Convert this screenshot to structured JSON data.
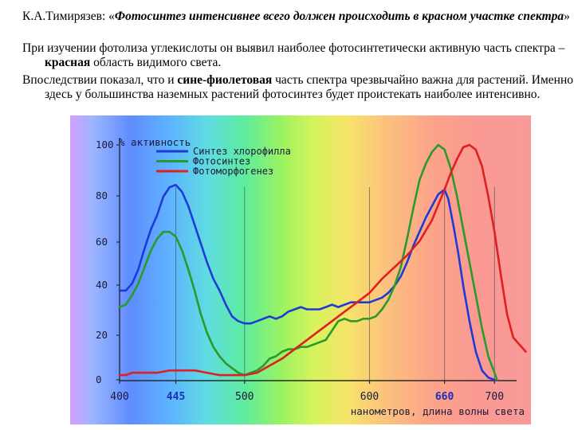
{
  "text": {
    "p1_a": "К.А.Тимирязев: «",
    "p1_em": "Фотосинтез интенсивнее всего должен происходить в красном участке спектра",
    "p1_b": "»",
    "p2_a": "При изучении фотолиза углекислоты он выявил наиболее фотосинтетически активную часть спектра – ",
    "p2_bold": "красная",
    "p2_b": " область видимого света.",
    "p3_a": "Впоследствии показал, что и ",
    "p3_bold": "сине-фиолетовая",
    "p3_b": " часть спектра чрезвычайно важна для растений. Именно здесь у большинства наземных растений фотосинтез будет проистекать наиболее интенсивно."
  },
  "colors": {
    "blue": "#1f3bd6",
    "green": "#2a9a2a",
    "red": "#e02020",
    "axis": "#2a2a2a",
    "tick_label": "#1a1a3a",
    "accent_tick": "#1c2fb5"
  },
  "chart_data": {
    "type": "line",
    "ylabel": "% активность",
    "xlabel": "нанометров, длина волны света",
    "xlim": [
      400,
      740
    ],
    "ylim": [
      0,
      100
    ],
    "x_ticks": [
      {
        "value": 400,
        "label": "400",
        "bold": false
      },
      {
        "value": 445,
        "label": "445",
        "bold": true
      },
      {
        "value": 500,
        "label": "500",
        "bold": false
      },
      {
        "value": 600,
        "label": "600",
        "bold": false
      },
      {
        "value": 660,
        "label": "660",
        "bold": true
      },
      {
        "value": 700,
        "label": "700",
        "bold": false
      }
    ],
    "y_ticks": [
      0,
      20,
      40,
      60,
      80,
      100
    ],
    "guide_lines_x": [
      445,
      500,
      600,
      660,
      700
    ],
    "legend_position": "top-center",
    "series": [
      {
        "name": "Синтез хлорофилла",
        "color_key": "blue",
        "points": [
          [
            400,
            38
          ],
          [
            405,
            38
          ],
          [
            410,
            41
          ],
          [
            415,
            47
          ],
          [
            420,
            56
          ],
          [
            425,
            64
          ],
          [
            430,
            70
          ],
          [
            435,
            78
          ],
          [
            440,
            82
          ],
          [
            445,
            83
          ],
          [
            450,
            80
          ],
          [
            455,
            74
          ],
          [
            460,
            66
          ],
          [
            465,
            58
          ],
          [
            470,
            50
          ],
          [
            475,
            43
          ],
          [
            480,
            38
          ],
          [
            485,
            32
          ],
          [
            490,
            27
          ],
          [
            495,
            25
          ],
          [
            500,
            24
          ],
          [
            505,
            24
          ],
          [
            510,
            25
          ],
          [
            515,
            26
          ],
          [
            520,
            27
          ],
          [
            525,
            26
          ],
          [
            530,
            27
          ],
          [
            535,
            29
          ],
          [
            540,
            30
          ],
          [
            545,
            31
          ],
          [
            550,
            30
          ],
          [
            555,
            30
          ],
          [
            560,
            30
          ],
          [
            565,
            31
          ],
          [
            570,
            32
          ],
          [
            575,
            31
          ],
          [
            580,
            32
          ],
          [
            585,
            33
          ],
          [
            590,
            33
          ],
          [
            595,
            33
          ],
          [
            600,
            33
          ],
          [
            605,
            34
          ],
          [
            610,
            35
          ],
          [
            615,
            37
          ],
          [
            620,
            40
          ],
          [
            625,
            44
          ],
          [
            630,
            50
          ],
          [
            635,
            57
          ],
          [
            640,
            63
          ],
          [
            645,
            69
          ],
          [
            650,
            74
          ],
          [
            655,
            79
          ],
          [
            660,
            81
          ],
          [
            663,
            77
          ],
          [
            667,
            66
          ],
          [
            671,
            54
          ],
          [
            675,
            40
          ],
          [
            680,
            25
          ],
          [
            685,
            12
          ],
          [
            690,
            4
          ],
          [
            695,
            1
          ],
          [
            700,
            0
          ]
        ]
      },
      {
        "name": "Фотосинтез",
        "color_key": "green",
        "points": [
          [
            400,
            31
          ],
          [
            405,
            32
          ],
          [
            410,
            36
          ],
          [
            415,
            41
          ],
          [
            420,
            48
          ],
          [
            425,
            55
          ],
          [
            430,
            60
          ],
          [
            435,
            63
          ],
          [
            440,
            63
          ],
          [
            445,
            61
          ],
          [
            450,
            55
          ],
          [
            455,
            47
          ],
          [
            460,
            38
          ],
          [
            465,
            28
          ],
          [
            470,
            20
          ],
          [
            475,
            14
          ],
          [
            480,
            10
          ],
          [
            485,
            7
          ],
          [
            490,
            5
          ],
          [
            495,
            3
          ],
          [
            500,
            2
          ],
          [
            505,
            3
          ],
          [
            510,
            4
          ],
          [
            515,
            6
          ],
          [
            520,
            9
          ],
          [
            525,
            10
          ],
          [
            530,
            12
          ],
          [
            535,
            13
          ],
          [
            540,
            13
          ],
          [
            545,
            14
          ],
          [
            550,
            14
          ],
          [
            555,
            15
          ],
          [
            560,
            16
          ],
          [
            565,
            17
          ],
          [
            570,
            21
          ],
          [
            575,
            25
          ],
          [
            580,
            26
          ],
          [
            585,
            25
          ],
          [
            590,
            25
          ],
          [
            595,
            26
          ],
          [
            600,
            26
          ],
          [
            605,
            27
          ],
          [
            610,
            30
          ],
          [
            615,
            34
          ],
          [
            620,
            40
          ],
          [
            625,
            48
          ],
          [
            630,
            60
          ],
          [
            635,
            73
          ],
          [
            640,
            85
          ],
          [
            645,
            92
          ],
          [
            650,
            97
          ],
          [
            655,
            100
          ],
          [
            660,
            98
          ],
          [
            665,
            90
          ],
          [
            670,
            78
          ],
          [
            675,
            64
          ],
          [
            680,
            50
          ],
          [
            685,
            36
          ],
          [
            690,
            22
          ],
          [
            695,
            10
          ],
          [
            700,
            3
          ],
          [
            702,
            0
          ]
        ]
      },
      {
        "name": "Фотоморфогенез",
        "color_key": "red",
        "points": [
          [
            400,
            2
          ],
          [
            405,
            2
          ],
          [
            410,
            3
          ],
          [
            420,
            3
          ],
          [
            430,
            3
          ],
          [
            440,
            4
          ],
          [
            450,
            4
          ],
          [
            460,
            4
          ],
          [
            470,
            3
          ],
          [
            480,
            2
          ],
          [
            490,
            2
          ],
          [
            500,
            2
          ],
          [
            510,
            3
          ],
          [
            520,
            6
          ],
          [
            530,
            9
          ],
          [
            540,
            13
          ],
          [
            550,
            17
          ],
          [
            560,
            21
          ],
          [
            570,
            25
          ],
          [
            580,
            29
          ],
          [
            590,
            33
          ],
          [
            600,
            37
          ],
          [
            610,
            43
          ],
          [
            620,
            48
          ],
          [
            630,
            53
          ],
          [
            640,
            59
          ],
          [
            650,
            68
          ],
          [
            660,
            81
          ],
          [
            665,
            88
          ],
          [
            670,
            94
          ],
          [
            675,
            99
          ],
          [
            680,
            100
          ],
          [
            685,
            98
          ],
          [
            690,
            91
          ],
          [
            695,
            78
          ],
          [
            700,
            63
          ],
          [
            705,
            45
          ],
          [
            710,
            28
          ],
          [
            715,
            18
          ],
          [
            720,
            15
          ],
          [
            725,
            12
          ]
        ]
      }
    ]
  }
}
